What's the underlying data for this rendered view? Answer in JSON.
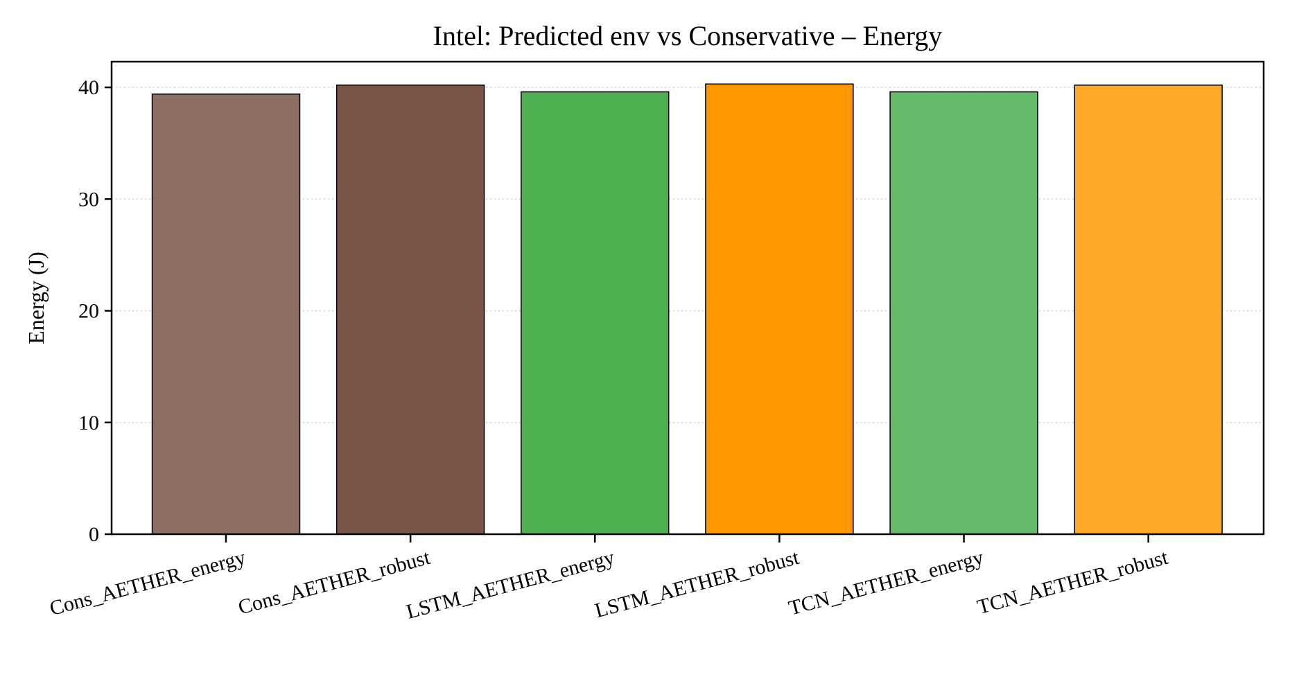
{
  "chart_data": {
    "type": "bar",
    "title": "Intel: Predicted env vs Conservative – Energy",
    "xlabel": "",
    "ylabel": "Energy (J)",
    "categories": [
      "Cons_AETHER_energy",
      "Cons_AETHER_robust",
      "LSTM_AETHER_energy",
      "LSTM_AETHER_robust",
      "TCN_AETHER_energy",
      "TCN_AETHER_robust"
    ],
    "values": [
      39.4,
      40.2,
      39.6,
      40.3,
      39.6,
      40.2
    ],
    "colors": [
      "#8d6e63",
      "#795548",
      "#4caf50",
      "#ff9800",
      "#66bb6a",
      "#ffa726"
    ],
    "edge_color": "#000000",
    "ylim": [
      0,
      42.3
    ],
    "yticks": [
      0,
      10,
      20,
      30,
      40
    ],
    "grid": "y, dotted",
    "xtick_rotation": 15
  }
}
